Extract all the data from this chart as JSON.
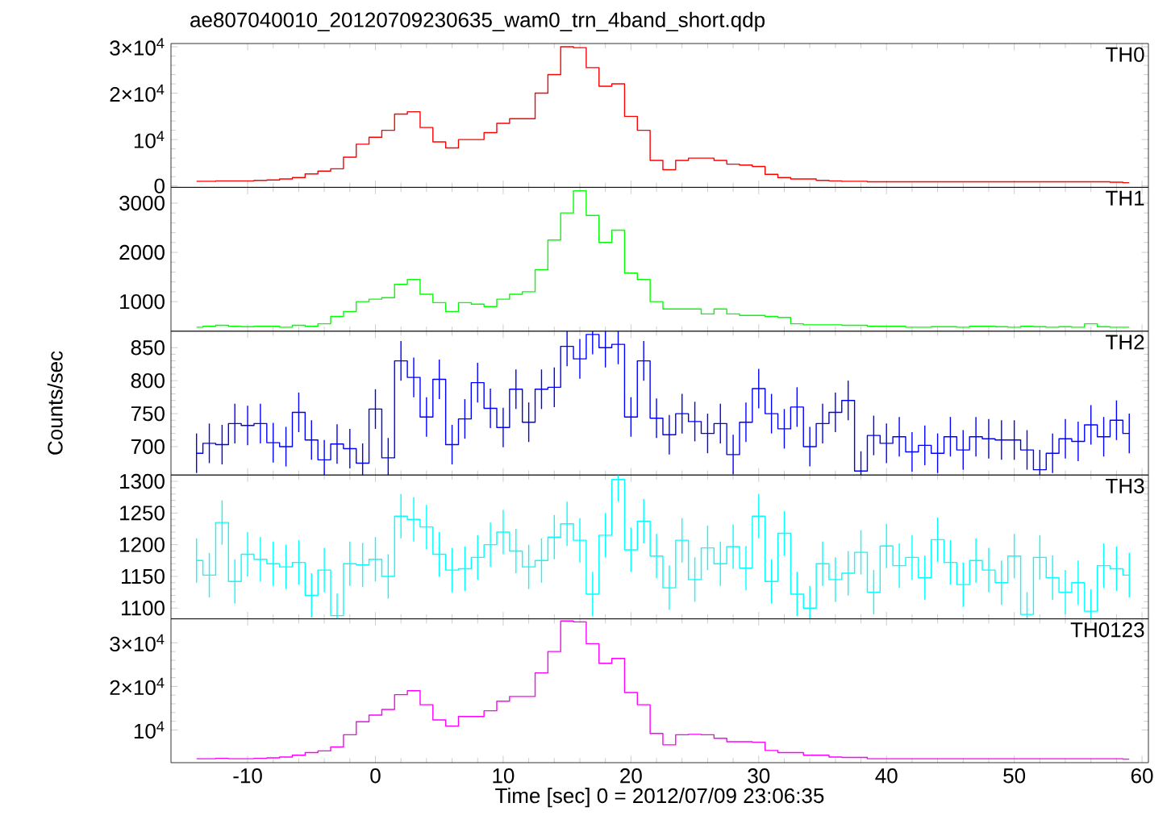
{
  "chart_data": [
    {
      "type": "step",
      "title": "ae807040010_20120709230635_wam0_trn_4band_short.qdp",
      "annotations": [
        "TH0"
      ],
      "tick_labels": "y",
      "color": "#ff0000",
      "x": [
        -14,
        -13,
        -12,
        -11,
        -10,
        -9,
        -8,
        -7,
        -6,
        -5,
        -4,
        -3,
        -2,
        -1,
        0,
        1,
        2,
        3,
        4,
        5,
        6,
        7,
        8,
        9,
        10,
        11,
        12,
        13,
        14,
        15,
        16,
        17,
        18,
        19,
        20,
        21,
        22,
        23,
        24,
        25,
        26,
        27,
        28,
        29,
        30,
        31,
        32,
        33,
        34,
        35,
        36,
        37,
        38,
        39,
        40,
        41,
        42,
        43,
        44,
        45,
        46,
        47,
        48,
        49,
        50,
        51,
        52,
        53,
        54,
        55,
        56,
        57,
        58,
        59
      ],
      "values": [
        1000,
        1000,
        1100,
        1100,
        1100,
        1200,
        1300,
        1500,
        1800,
        2600,
        3200,
        3700,
        6200,
        9000,
        10500,
        12000,
        15500,
        16000,
        12600,
        9500,
        8200,
        10000,
        10000,
        11500,
        13500,
        14500,
        14500,
        20000,
        24000,
        30000,
        29800,
        25500,
        21500,
        22000,
        15000,
        12000,
        5500,
        3500,
        5500,
        6000,
        6000,
        5500,
        4700,
        4500,
        4200,
        2500,
        1800,
        1500,
        1500,
        1200,
        1100,
        1000,
        1000,
        900,
        900,
        900,
        900,
        900,
        900,
        900,
        900,
        900,
        900,
        900,
        900,
        900,
        900,
        900,
        900,
        900,
        900,
        900,
        800,
        700
      ],
      "xlim": [
        -16,
        60.5
      ],
      "xticks": [
        -10,
        0,
        10,
        20,
        30,
        40,
        50,
        60
      ],
      "ylim": [
        -300,
        30700
      ],
      "yticks": [
        0,
        {
          "value": 10000,
          "label": "10$^{4}$"
        },
        {
          "value": 20000,
          "label": "2×10$^{4}$"
        },
        {
          "value": 30000,
          "label": "3×10$^{4}$"
        }
      ]
    },
    {
      "type": "step",
      "annotations": [
        "TH1"
      ],
      "tick_labels": "y",
      "color": "#00ff00",
      "x": [
        -14,
        -13,
        -12,
        -11,
        -10,
        -9,
        -8,
        -7,
        -6,
        -5,
        -4,
        -3,
        -2,
        -1,
        0,
        1,
        2,
        3,
        4,
        5,
        6,
        7,
        8,
        9,
        10,
        11,
        12,
        13,
        14,
        15,
        16,
        17,
        18,
        19,
        20,
        21,
        22,
        23,
        24,
        25,
        26,
        27,
        28,
        29,
        30,
        31,
        32,
        33,
        34,
        35,
        36,
        37,
        38,
        39,
        40,
        41,
        42,
        43,
        44,
        45,
        46,
        47,
        48,
        49,
        50,
        51,
        52,
        53,
        54,
        55,
        56,
        57,
        58,
        59
      ],
      "values": [
        480,
        500,
        520,
        500,
        490,
        500,
        500,
        480,
        520,
        500,
        550,
        700,
        800,
        1000,
        1050,
        1080,
        1350,
        1450,
        1150,
        980,
        800,
        980,
        950,
        900,
        1050,
        1150,
        1200,
        1650,
        2250,
        2800,
        3250,
        2750,
        2200,
        2450,
        1580,
        1450,
        1000,
        850,
        850,
        850,
        750,
        850,
        750,
        720,
        720,
        700,
        680,
        550,
        530,
        530,
        530,
        520,
        520,
        500,
        500,
        500,
        480,
        480,
        490,
        490,
        480,
        500,
        500,
        490,
        480,
        500,
        490,
        480,
        490,
        480,
        550,
        490,
        480,
        480
      ],
      "xlim": [
        -16,
        60.5
      ],
      "xticks": [
        -10,
        0,
        10,
        20,
        30,
        40,
        50,
        60
      ],
      "ylim": [
        400,
        3320
      ],
      "yticks": [
        1000,
        2000,
        3000
      ]
    },
    {
      "type": "step",
      "annotations": [
        "TH2"
      ],
      "ylabel": "Counts/sec",
      "tick_labels": "y",
      "color": "#0000ff",
      "x": [
        -14,
        -13,
        -12,
        -11,
        -10,
        -9,
        -8,
        -7,
        -6,
        -5,
        -4,
        -3,
        -2,
        -1,
        0,
        1,
        2,
        3,
        4,
        5,
        6,
        7,
        8,
        9,
        10,
        11,
        12,
        13,
        14,
        15,
        16,
        17,
        18,
        19,
        20,
        21,
        22,
        23,
        24,
        25,
        26,
        27,
        28,
        29,
        30,
        31,
        32,
        33,
        34,
        35,
        36,
        37,
        38,
        39,
        40,
        41,
        42,
        43,
        44,
        45,
        46,
        47,
        48,
        49,
        50,
        51,
        52,
        53,
        54,
        55,
        56,
        57,
        58,
        59
      ],
      "values": [
        690,
        705,
        703,
        735,
        732,
        735,
        706,
        700,
        752,
        710,
        680,
        704,
        697,
        675,
        757,
        683,
        830,
        805,
        745,
        802,
        703,
        742,
        797,
        758,
        729,
        787,
        737,
        787,
        790,
        852,
        833,
        870,
        850,
        855,
        745,
        830,
        743,
        718,
        750,
        738,
        720,
        735,
        688,
        737,
        788,
        750,
        727,
        760,
        700,
        735,
        752,
        770,
        663,
        717,
        705,
        715,
        692,
        702,
        690,
        715,
        695,
        715,
        712,
        710,
        710,
        695,
        665,
        690,
        712,
        708,
        733,
        715,
        740,
        720
      ],
      "errors": [
        30,
        30,
        30,
        30,
        30,
        30,
        30,
        30,
        30,
        30,
        [
          657,
          710
        ],
        30,
        30,
        [
          657,
          705
        ],
        30,
        [
          657,
          713
        ],
        30,
        30,
        30,
        30,
        30,
        30,
        30,
        30,
        30,
        30,
        30,
        30,
        30,
        [
          822,
          875
        ],
        30,
        [
          840,
          875
        ],
        [
          820,
          875
        ],
        [
          825,
          875
        ],
        30,
        30,
        30,
        30,
        30,
        30,
        30,
        30,
        30,
        30,
        30,
        30,
        30,
        30,
        30,
        30,
        30,
        30,
        [
          657,
          693
        ],
        30,
        30,
        30,
        30,
        30,
        30,
        30,
        30,
        30,
        30,
        30,
        30,
        30,
        [
          657,
          695
        ],
        30,
        30,
        30,
        30,
        30,
        30,
        30
      ],
      "xlim": [
        -16,
        60.5
      ],
      "xticks": [
        -10,
        0,
        10,
        20,
        30,
        40,
        50,
        60
      ],
      "ylim": [
        657,
        875
      ],
      "yticks": [
        700,
        750,
        800,
        850
      ]
    },
    {
      "type": "step",
      "annotations": [
        "TH3"
      ],
      "tick_labels": "y",
      "color": "#00ffff",
      "x": [
        -14,
        -13,
        -12,
        -11,
        -10,
        -9,
        -8,
        -7,
        -6,
        -5,
        -4,
        -3,
        -2,
        -1,
        0,
        1,
        2,
        3,
        4,
        5,
        6,
        7,
        8,
        9,
        10,
        11,
        12,
        13,
        14,
        15,
        16,
        17,
        18,
        19,
        20,
        21,
        22,
        23,
        24,
        25,
        26,
        27,
        28,
        29,
        30,
        31,
        32,
        33,
        34,
        35,
        36,
        37,
        38,
        39,
        40,
        41,
        42,
        43,
        44,
        45,
        46,
        47,
        48,
        49,
        50,
        51,
        52,
        53,
        54,
        55,
        56,
        57,
        58,
        59
      ],
      "values": [
        1175,
        1152,
        1235,
        1142,
        1185,
        1177,
        1170,
        1165,
        1172,
        1120,
        1160,
        1088,
        1170,
        1168,
        1177,
        1150,
        1245,
        1240,
        1228,
        1185,
        1160,
        1162,
        1180,
        1200,
        1220,
        1190,
        1165,
        1175,
        1212,
        1233,
        1207,
        1122,
        1215,
        1303,
        1192,
        1237,
        1182,
        1132,
        1207,
        1145,
        1195,
        1170,
        1197,
        1163,
        1245,
        1142,
        1218,
        1122,
        1100,
        1170,
        1145,
        1155,
        1188,
        1125,
        1198,
        1167,
        1180,
        1148,
        1208,
        1172,
        1137,
        1175,
        1160,
        1140,
        1182,
        1090,
        1180,
        1148,
        1125,
        1140,
        1095,
        1167,
        1162,
        1152
      ],
      "errors": [
        35,
        35,
        35,
        35,
        35,
        35,
        35,
        35,
        35,
        35,
        35,
        [
          1083,
          1123
        ],
        35,
        35,
        35,
        35,
        35,
        35,
        35,
        35,
        35,
        35,
        35,
        35,
        35,
        35,
        35,
        35,
        35,
        35,
        35,
        35,
        35,
        [
          1268,
          1310
        ],
        35,
        35,
        35,
        35,
        35,
        35,
        35,
        35,
        35,
        35,
        35,
        35,
        35,
        35,
        [
          1083,
          1135
        ],
        35,
        35,
        35,
        35,
        35,
        35,
        35,
        35,
        35,
        35,
        35,
        35,
        35,
        35,
        35,
        35,
        [
          1083,
          1125
        ],
        35,
        35,
        35,
        35,
        [
          1083,
          1130
        ],
        35,
        35,
        35
      ],
      "xlim": [
        -16,
        60.5
      ],
      "xticks": [
        -10,
        0,
        10,
        20,
        30,
        40,
        50,
        60
      ],
      "ylim": [
        1083,
        1310
      ],
      "yticks": [
        1100,
        1150,
        1200,
        1250,
        1300
      ]
    },
    {
      "type": "step",
      "annotations": [
        "TH0123"
      ],
      "xlabel": "Time [sec] 0 = 2012/07/09 23:06:35",
      "color": "#ff00ff",
      "x": [
        -14,
        -13,
        -12,
        -11,
        -10,
        -9,
        -8,
        -7,
        -6,
        -5,
        -4,
        -3,
        -2,
        -1,
        0,
        1,
        2,
        3,
        4,
        5,
        6,
        7,
        8,
        9,
        10,
        11,
        12,
        13,
        14,
        15,
        16,
        17,
        18,
        19,
        20,
        21,
        22,
        23,
        24,
        25,
        26,
        27,
        28,
        29,
        30,
        31,
        32,
        33,
        34,
        35,
        36,
        37,
        38,
        39,
        40,
        41,
        42,
        43,
        44,
        45,
        46,
        47,
        48,
        49,
        50,
        51,
        52,
        53,
        54,
        55,
        56,
        57,
        58,
        59
      ],
      "values": [
        3400,
        3400,
        3500,
        3400,
        3400,
        3500,
        3600,
        3800,
        4200,
        4800,
        5200,
        6100,
        8900,
        11900,
        13400,
        14700,
        18100,
        19000,
        15800,
        12300,
        10900,
        13100,
        13100,
        14400,
        16600,
        17700,
        17700,
        23100,
        28000,
        35000,
        34800,
        29800,
        25300,
        26400,
        18600,
        15800,
        9200,
        6600,
        8900,
        9000,
        8900,
        8100,
        7300,
        7300,
        7200,
        5300,
        4800,
        4800,
        4200,
        4200,
        3800,
        3700,
        3700,
        3400,
        3400,
        3400,
        3400,
        3400,
        3400,
        3400,
        3400,
        3400,
        3400,
        3400,
        3400,
        3400,
        3400,
        3400,
        3400,
        3400,
        3400,
        3400,
        3400,
        3300
      ],
      "xlim": [
        -16,
        60.5
      ],
      "xticks": [
        -10,
        0,
        10,
        20,
        30,
        40,
        50,
        60
      ],
      "ylim": [
        2500,
        35500
      ],
      "yticks": [
        {
          "value": 10000,
          "label": "10$^{4}$"
        },
        {
          "value": 20000,
          "label": "2×10$^{4}$"
        },
        {
          "value": 30000,
          "label": "3×10$^{4}$"
        }
      ]
    }
  ]
}
